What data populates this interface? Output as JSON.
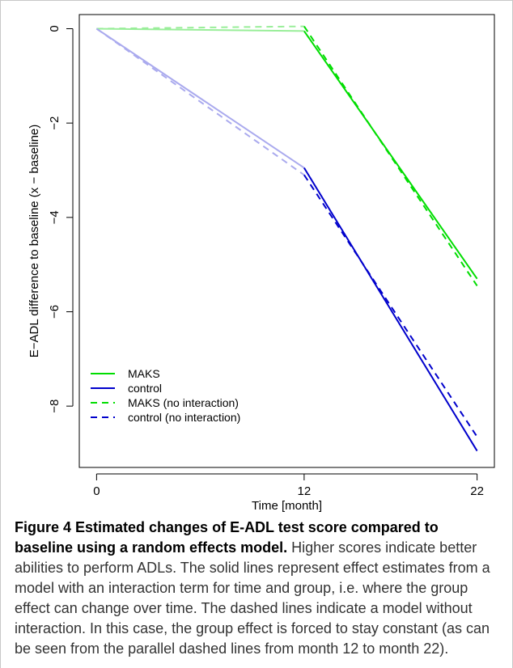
{
  "chart_data": {
    "type": "line",
    "xlabel": "Time [month]",
    "ylabel": "E−ADL difference to baseline (x − baseline)",
    "x_ticks": [
      0,
      12,
      22
    ],
    "y_ticks": [
      0,
      -2,
      -4,
      -6,
      -8
    ],
    "x_tick_labels": [
      "0",
      "12",
      "22"
    ],
    "y_tick_labels": [
      "0",
      "−2",
      "−4",
      "−6",
      "−8"
    ],
    "xlim": [
      -1,
      23
    ],
    "ylim": [
      -9.3,
      0.3
    ],
    "legend_position": "bottom-left",
    "legend": [
      {
        "label": "MAKS",
        "color": "#00dd00",
        "dashed": false
      },
      {
        "label": "control",
        "color": "#0000cc",
        "dashed": false
      },
      {
        "label": "MAKS (no interaction)",
        "color": "#00dd00",
        "dashed": true
      },
      {
        "label": "control (no interaction)",
        "color": "#0000cc",
        "dashed": true
      }
    ],
    "series": [
      {
        "name": "MAKS",
        "x": [
          0,
          12,
          22
        ],
        "y": [
          0,
          -0.05,
          -5.3
        ],
        "color": "#00dd00",
        "faded_color": "#99ee99",
        "dashed": false
      },
      {
        "name": "control",
        "x": [
          0,
          12,
          22
        ],
        "y": [
          0,
          -2.95,
          -8.95
        ],
        "color": "#0000cc",
        "faded_color": "#aaaaee",
        "dashed": false
      },
      {
        "name": "MAKS (no interaction)",
        "x": [
          0,
          12,
          22
        ],
        "y": [
          0,
          0.05,
          -5.45
        ],
        "color": "#00dd00",
        "faded_color": "#99ee99",
        "dashed": true
      },
      {
        "name": "control (no interaction)",
        "x": [
          0,
          12,
          22
        ],
        "y": [
          0,
          -3.1,
          -8.65
        ],
        "color": "#0000cc",
        "faded_color": "#aaaaee",
        "dashed": true
      }
    ]
  },
  "caption": {
    "title": "Figure 4 Estimated changes of E-ADL test score compared to baseline using a random effects model.",
    "text": " Higher scores indicate better abilities to perform ADLs. The solid lines represent effect estimates from a model with an interaction term for time and group, i.e. where the group effect can change over time. The dashed lines indicate a model without interaction. In this case, the group effect is forced to stay constant (as can be seen from the parallel dashed lines from month 12 to month 22)."
  }
}
